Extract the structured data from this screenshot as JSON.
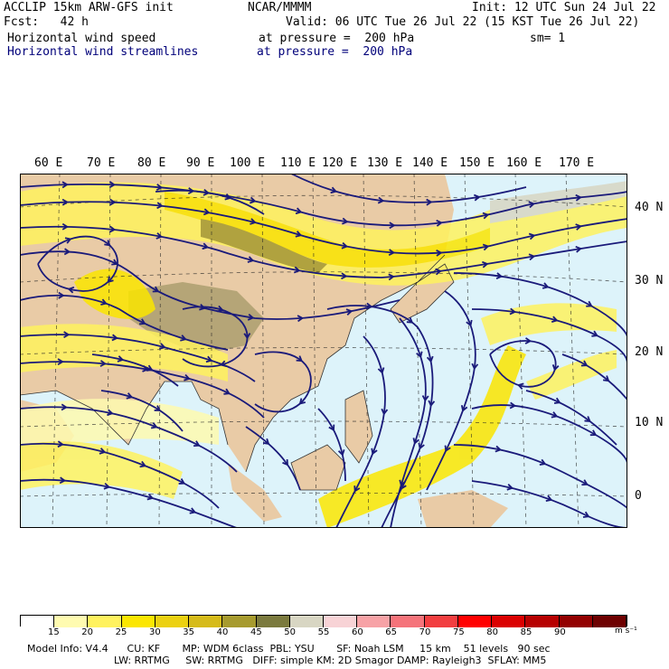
{
  "header": {
    "model": "ACCLIP 15km ARW-GFS init",
    "center": "NCAR/MMMM",
    "init": "Init: 12 UTC Sun 24 Jul 22",
    "fcst": "Fcst:   42 h",
    "valid": "Valid: 06 UTC Tue 26 Jul 22 (15 KST Tue 26 Jul 22)",
    "field1": "Horizontal wind speed",
    "field1_level": "at pressure =  200 hPa",
    "smoothing": "sm= 1",
    "field2": "Horizontal wind streamlines",
    "field2_level": "at pressure =  200 hPa"
  },
  "map": {
    "lon_labels": [
      "60 E",
      "70 E",
      "80 E",
      "90 E",
      "100 E",
      "110 E",
      "120 E",
      "130 E",
      "140 E",
      "150 E",
      "160 E",
      "170 E"
    ],
    "lat_labels": [
      "40 N",
      "30 N",
      "20 N",
      "10 N",
      "0"
    ],
    "streamline_color": "#1a1a7a",
    "land_color": "#e9cba6",
    "ocean_color": "#ddf3fa"
  },
  "colorbar": {
    "ticks": [
      "15",
      "20",
      "25",
      "30",
      "35",
      "40",
      "45",
      "50",
      "55",
      "60",
      "65",
      "70",
      "75",
      "80",
      "85",
      "90"
    ],
    "unit": "m s⁻¹",
    "colors": [
      "#ffffff",
      "#fffbb0",
      "#fff25e",
      "#fbe600",
      "#ecd110",
      "#d6bb1a",
      "#a79b2e",
      "#7b7a3e",
      "#d8d6c3",
      "#f8d3d6",
      "#f7a2a6",
      "#f5737a",
      "#f23e40",
      "#ff0000",
      "#db0000",
      "#b70000",
      "#930000",
      "#6e0000"
    ]
  },
  "footer": {
    "line1": "Model Info: V4.4      CU: KF       MP: WDM 6class  PBL: YSU       SF: Noah LSM     15 km    51 levels   90 sec",
    "line2": "LW: RRTMG     SW: RRTMG   DIFF: simple KM: 2D Smagor DAMP: Rayleigh3  SFLAY: MM5"
  }
}
